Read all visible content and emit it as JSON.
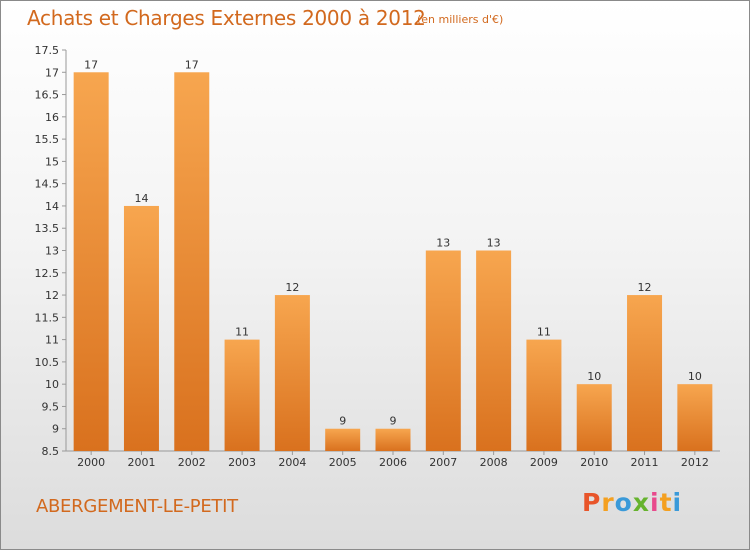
{
  "title": "Achats et Charges Externes 2000 à 2012",
  "subtitle": "(en milliers d'€)",
  "town": "ABERGEMENT-LE-PETIT",
  "logo": {
    "letters": [
      "P",
      "r",
      "o",
      "x",
      "i",
      "t",
      "i"
    ],
    "colors": [
      "#e8552a",
      "#f4a020",
      "#3a9ad9",
      "#66b32e",
      "#e84a8c",
      "#f4a020",
      "#3a9ad9"
    ]
  },
  "colors": {
    "bar_light": "#f7a64f",
    "bar_dark": "#d9711e",
    "text_accent": "#d2691e"
  },
  "chart_data": {
    "type": "bar",
    "title": "Achats et Charges Externes 2000 à 2012",
    "subtitle": "(en milliers d'€)",
    "categories": [
      "2000",
      "2001",
      "2002",
      "2003",
      "2004",
      "2005",
      "2006",
      "2007",
      "2008",
      "2009",
      "2010",
      "2011",
      "2012"
    ],
    "values": [
      17,
      14,
      17,
      11,
      12,
      9,
      9,
      13,
      13,
      11,
      10,
      12,
      10
    ],
    "ylim": [
      8.5,
      17.5
    ],
    "yticks": [
      "8.5",
      "9",
      "9.5",
      "10",
      "10.5",
      "11",
      "11.5",
      "12",
      "12.5",
      "13",
      "13.5",
      "14",
      "14.5",
      "15",
      "15.5",
      "16",
      "16.5",
      "17",
      "17.5"
    ],
    "xlabel": "",
    "ylabel": "",
    "grid": false,
    "data_labels": true
  }
}
